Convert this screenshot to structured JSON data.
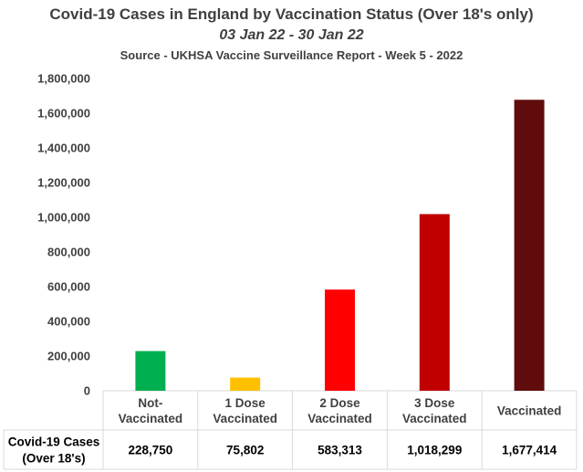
{
  "chart_data": {
    "type": "bar",
    "title": "Covid-19 Cases in England by Vaccination Status (Over 18's only)",
    "subtitle": "03 Jan 22 - 30 Jan 22",
    "source": "Source - UKHSA Vaccine Surveillance Report - Week 5 - 2022",
    "categories": [
      [
        "Not-",
        "Vaccinated"
      ],
      [
        "1 Dose",
        "Vaccinated"
      ],
      [
        "2 Dose",
        "Vaccinated"
      ],
      [
        "3 Dose",
        "Vaccinated"
      ],
      [
        "Vaccinated"
      ]
    ],
    "series": [
      {
        "name": "Covid-19 Cases (Over 18's)",
        "name_lines": [
          "Covid-19 Cases",
          "(Over 18's)"
        ],
        "values": [
          228750,
          75802,
          583313,
          1018299,
          1677414
        ],
        "value_labels": [
          "228,750",
          "75,802",
          "583,313",
          "1,018,299",
          "1,677,414"
        ],
        "colors": [
          "#00b050",
          "#ffc000",
          "#ff0000",
          "#c00000",
          "#600c0c"
        ]
      }
    ],
    "ylim": [
      0,
      1800000
    ],
    "yticks": [
      0,
      200000,
      400000,
      600000,
      800000,
      1000000,
      1200000,
      1400000,
      1600000,
      1800000
    ],
    "ytick_labels": [
      "0",
      "200,000",
      "400,000",
      "600,000",
      "800,000",
      "1,000,000",
      "1,200,000",
      "1,400,000",
      "1,600,000",
      "1,800,000"
    ],
    "xlabel": "",
    "ylabel": "",
    "grid": false,
    "legend": "data-table"
  }
}
